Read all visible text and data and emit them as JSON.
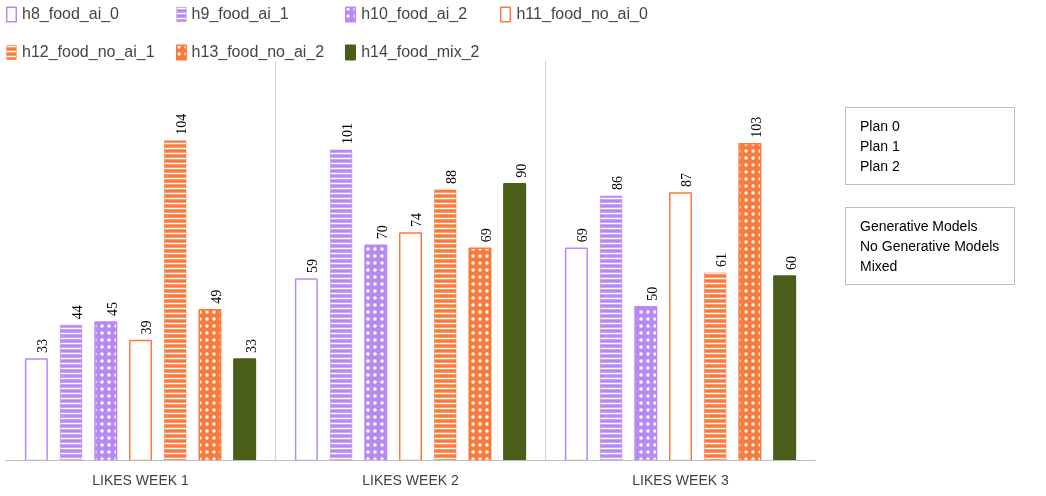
{
  "chart_data": {
    "type": "bar",
    "categories": [
      "LIKES WEEK 1",
      "LIKES WEEK 2",
      "LIKES WEEK 3"
    ],
    "series": [
      {
        "name": "h8_food_ai_0",
        "color": "#b78af3",
        "values": [
          33,
          59,
          69
        ]
      },
      {
        "name": "h9_food_ai_1",
        "color": "#b78af3",
        "values": [
          44,
          101,
          86
        ]
      },
      {
        "name": "h10_food_ai_2",
        "color": "#b78af3",
        "values": [
          45,
          70,
          50
        ]
      },
      {
        "name": "h11_food_no_ai_0",
        "color": "#f97a3a",
        "values": [
          39,
          74,
          87
        ]
      },
      {
        "name": "h12_food_no_ai_1",
        "color": "#f97a3a",
        "values": [
          104,
          88,
          61
        ]
      },
      {
        "name": "h13_food_no_ai_2",
        "color": "#f97a3a",
        "values": [
          49,
          69,
          103
        ]
      },
      {
        "name": "h14_food_mix_2",
        "color": "#4a5e1a",
        "values": [
          33,
          90,
          60
        ]
      }
    ],
    "data_labels": true,
    "legend": "top",
    "annotations": [
      "Plan 0",
      "Plan 1",
      "Plan 2",
      "Generative Models",
      "No Generative Models",
      "Mixed"
    ]
  }
}
